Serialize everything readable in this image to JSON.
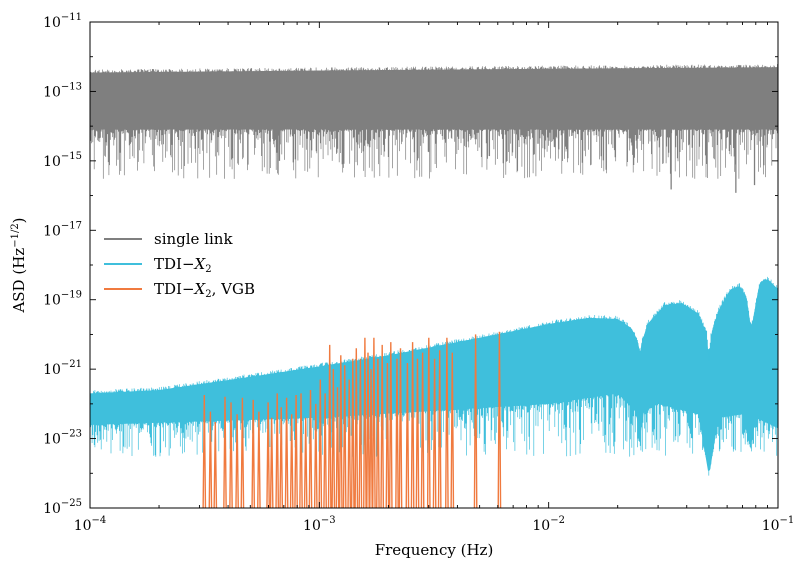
{
  "chart_data": {
    "type": "line",
    "xscale": "log",
    "yscale": "log",
    "xlim": [
      0.0001,
      0.1
    ],
    "ylim": [
      1e-25,
      1e-11
    ],
    "xlabel": "Frequency (Hz)",
    "ylabel": "ASD (Hz^-1/2)",
    "ylabel_parts": {
      "pre": "ASD (Hz",
      "sup": "−1/2",
      "post": ")"
    },
    "grid": false,
    "legend": {
      "placement": "center-left",
      "entries": [
        {
          "label_pre": "single link",
          "label_var": "",
          "label_sub": "",
          "label_post": ""
        },
        {
          "label_pre": "TDI−",
          "label_var": "X",
          "label_sub": "2",
          "label_post": ""
        },
        {
          "label_pre": "TDI−",
          "label_var": "X",
          "label_sub": "2",
          "label_post": ", VGB"
        }
      ]
    },
    "xticks": [
      {
        "value": 0.0001,
        "base": "10",
        "exp": "−4"
      },
      {
        "value": 0.001,
        "base": "10",
        "exp": "−3"
      },
      {
        "value": 0.01,
        "base": "10",
        "exp": "−2"
      },
      {
        "value": 0.1,
        "base": "10",
        "exp": "−1"
      }
    ],
    "yticks": [
      {
        "value": 1e-11,
        "base": "10",
        "exp": "−11"
      },
      {
        "value": 1e-13,
        "base": "10",
        "exp": "−13"
      },
      {
        "value": 1e-15,
        "base": "10",
        "exp": "−15"
      },
      {
        "value": 1e-17,
        "base": "10",
        "exp": "−17"
      },
      {
        "value": 1e-19,
        "base": "10",
        "exp": "−19"
      },
      {
        "value": 1e-21,
        "base": "10",
        "exp": "−21"
      },
      {
        "value": 1e-23,
        "base": "10",
        "exp": "−23"
      },
      {
        "value": 1e-25,
        "base": "10",
        "exp": "−25"
      }
    ],
    "series": [
      {
        "name": "single link",
        "color": "#7f7f7f",
        "style": "noise-band",
        "upper_envelope": {
          "x": [
            0.0001,
            0.001,
            0.01,
            0.1
          ],
          "y": [
            3.5e-13,
            4e-13,
            4.5e-13,
            5e-13
          ]
        },
        "dense_lower": {
          "x": [
            0.0001,
            0.1
          ],
          "y": [
            8e-15,
            8e-15
          ]
        },
        "spikes_min": 3e-16,
        "isolated_spikes": [
          {
            "x": 0.00067,
            "y": 1e-15
          },
          {
            "x": 0.0342,
            "y": 1.5e-16
          },
          {
            "x": 0.0655,
            "y": 1.2e-16
          },
          {
            "x": 0.079,
            "y": 2e-16
          }
        ]
      },
      {
        "name": "TDI−X2",
        "color": "#3fbfdc",
        "style": "noise-band",
        "upper_envelope": {
          "x": [
            0.0001,
            0.0002,
            0.0005,
            0.001,
            0.002,
            0.005,
            0.01,
            0.015,
            0.02,
            0.023,
            0.0245,
            0.025,
            0.0255,
            0.027,
            0.032,
            0.038,
            0.045,
            0.049,
            0.05,
            0.051,
            0.055,
            0.062,
            0.068,
            0.073,
            0.075,
            0.0765,
            0.078,
            0.083,
            0.09,
            0.1
          ],
          "y": [
            2e-22,
            2.5e-22,
            6e-22,
            1.2e-21,
            2.5e-21,
            8e-21,
            2e-20,
            3e-20,
            2.8e-20,
            1.5e-20,
            6e-21,
            3e-21,
            6e-21,
            2e-20,
            7e-20,
            8e-20,
            4e-20,
            1e-20,
            1.5e-21,
            1e-20,
            5e-20,
            2e-19,
            2.5e-19,
            1.2e-19,
            3e-20,
            1.5e-20,
            3e-20,
            3e-19,
            4e-19,
            2e-19
          ]
        },
        "dense_lower": {
          "x": [
            0.0001,
            0.001,
            0.01,
            0.02,
            0.024,
            0.025,
            0.026,
            0.03,
            0.045,
            0.05,
            0.055,
            0.07,
            0.076,
            0.08,
            0.1
          ],
          "y": [
            2.5e-23,
            4e-23,
            1e-22,
            2e-22,
            6e-23,
            1e-23,
            6e-23,
            1e-22,
            5e-23,
            8e-25,
            4e-23,
            5e-23,
            5e-24,
            4e-23,
            2e-23
          ]
        },
        "spikes_min": 3e-24
      },
      {
        "name": "TDI−X2, VGB",
        "color": "#f07a3f",
        "style": "spikes",
        "baseline": 1e-25,
        "peaks": [
          {
            "x": 0.000315,
            "y": 1.8e-22
          },
          {
            "x": 0.000335,
            "y": 6e-23
          },
          {
            "x": 0.000352,
            "y": 3e-23
          },
          {
            "x": 0.000388,
            "y": 1.6e-22
          },
          {
            "x": 0.000412,
            "y": 1.1e-22
          },
          {
            "x": 0.000438,
            "y": 5e-23
          },
          {
            "x": 0.000462,
            "y": 1.5e-22
          },
          {
            "x": 0.000515,
            "y": 1.3e-22
          },
          {
            "x": 0.000545,
            "y": 6e-23
          },
          {
            "x": 0.000598,
            "y": 1.1e-22
          },
          {
            "x": 0.00062,
            "y": 4e-23
          },
          {
            "x": 0.000655,
            "y": 2e-22
          },
          {
            "x": 0.000682,
            "y": 8e-23
          },
          {
            "x": 0.00072,
            "y": 1.5e-22
          },
          {
            "x": 0.000758,
            "y": 5e-23
          },
          {
            "x": 0.000792,
            "y": 1.8e-22
          },
          {
            "x": 0.000832,
            "y": 2e-22
          },
          {
            "x": 0.000872,
            "y": 4e-23
          },
          {
            "x": 0.000915,
            "y": 2.5e-22
          },
          {
            "x": 0.000965,
            "y": 1e-22
          },
          {
            "x": 0.00101,
            "y": 5e-22
          },
          {
            "x": 0.00106,
            "y": 2e-22
          },
          {
            "x": 0.00111,
            "y": 5e-21
          },
          {
            "x": 0.00115,
            "y": 1e-21
          },
          {
            "x": 0.0012,
            "y": 3e-22
          },
          {
            "x": 0.00124,
            "y": 2.5e-21
          },
          {
            "x": 0.00129,
            "y": 1.3e-21
          },
          {
            "x": 0.00135,
            "y": 5e-22
          },
          {
            "x": 0.0014,
            "y": 2e-21
          },
          {
            "x": 0.00145,
            "y": 4e-21
          },
          {
            "x": 0.00151,
            "y": 2e-21
          },
          {
            "x": 0.00158,
            "y": 8e-21
          },
          {
            "x": 0.00163,
            "y": 3e-21
          },
          {
            "x": 0.00168,
            "y": 1e-21
          },
          {
            "x": 0.00173,
            "y": 8e-21
          },
          {
            "x": 0.0018,
            "y": 2e-21
          },
          {
            "x": 0.00188,
            "y": 5e-21
          },
          {
            "x": 0.00198,
            "y": 1.5e-21
          },
          {
            "x": 0.00205,
            "y": 6e-21
          },
          {
            "x": 0.00218,
            "y": 2e-21
          },
          {
            "x": 0.00226,
            "y": 4e-21
          },
          {
            "x": 0.00242,
            "y": 1.5e-21
          },
          {
            "x": 0.00255,
            "y": 6e-21
          },
          {
            "x": 0.00268,
            "y": 2e-21
          },
          {
            "x": 0.00282,
            "y": 3e-21
          },
          {
            "x": 0.003,
            "y": 8e-21
          },
          {
            "x": 0.00318,
            "y": 2e-21
          },
          {
            "x": 0.00335,
            "y": 3.5e-21
          },
          {
            "x": 0.0036,
            "y": 8e-21
          },
          {
            "x": 0.0038,
            "y": 3e-21
          },
          {
            "x": 0.0048,
            "y": 1e-20
          },
          {
            "x": 0.0061,
            "y": 1.2e-20
          }
        ]
      }
    ]
  }
}
